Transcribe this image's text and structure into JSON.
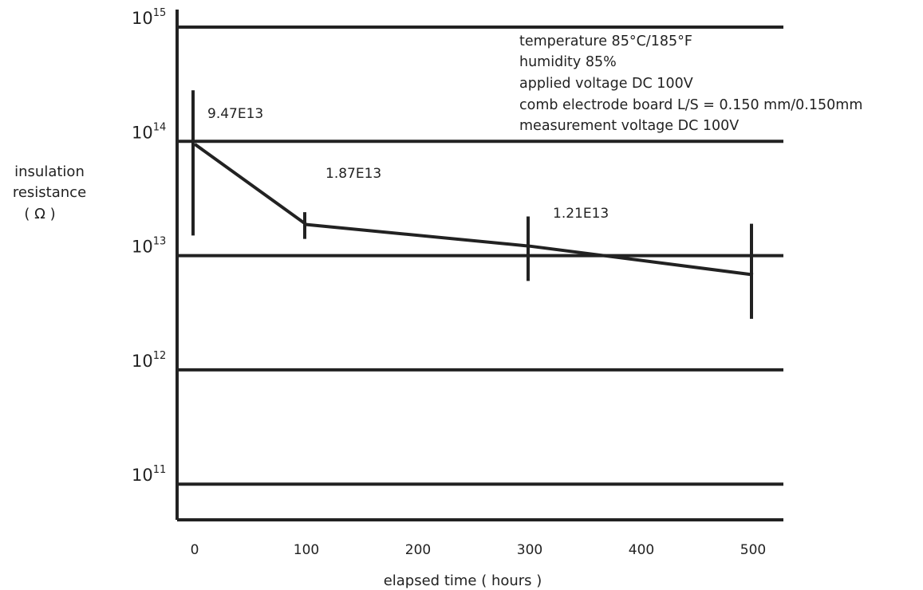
{
  "chart_data": {
    "type": "line",
    "title": "",
    "xlabel": "elapsed time ( hours )",
    "ylabel": [
      "insulation",
      "resistance",
      "( Ω )"
    ],
    "x_ticks": [
      "0",
      "100",
      "200",
      "300",
      "400",
      "500"
    ],
    "x_range": [
      0,
      500
    ],
    "y_scale": "log",
    "y_range_exponent": [
      11,
      15
    ],
    "y_ticks": [
      {
        "base": "10",
        "exp": "15",
        "value": 1000000000000000.0
      },
      {
        "base": "10",
        "exp": "14",
        "value": 100000000000000.0
      },
      {
        "base": "10",
        "exp": "13",
        "value": 10000000000000.0
      },
      {
        "base": "10",
        "exp": "12",
        "value": 1000000000000.0
      },
      {
        "base": "10",
        "exp": "11",
        "value": 100000000000.0
      }
    ],
    "grid": "horizontal",
    "series": [
      {
        "x": [
          0,
          100,
          300,
          500
        ],
        "y": [
          94700000000000,
          18700000000000,
          12100000000000,
          6800000000000
        ],
        "error_low": [
          15000000000000,
          14000000000000,
          6000000000000,
          2800000000000
        ],
        "error_high": [
          280000000000000,
          24000000000000,
          22000000000000,
          19000000000000
        ]
      }
    ],
    "data_labels": [
      {
        "text": "9.47E13",
        "index": 0
      },
      {
        "text": "1.87E13",
        "index": 1
      },
      {
        "text": "1.21E13",
        "index": 2
      }
    ],
    "annotations": [
      "temperature 85°C/185°F",
      "humidity 85%",
      "applied voltage DC 100V",
      "comb electrode board L/S = 0.150 mm/0.150mm",
      "measurement voltage DC 100V"
    ]
  }
}
